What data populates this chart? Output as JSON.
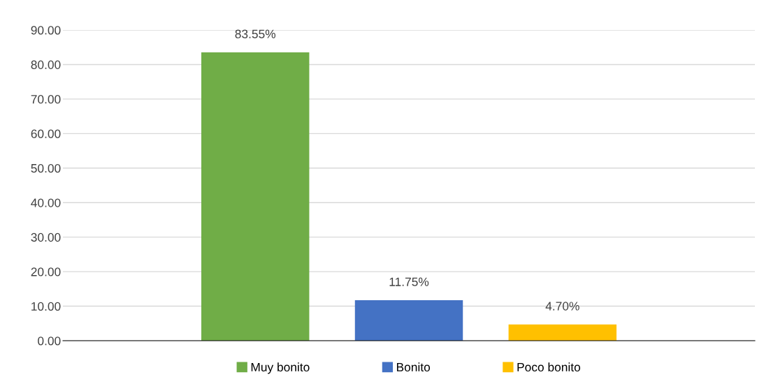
{
  "chart_data": {
    "type": "bar",
    "categories": [
      null
    ],
    "series": [
      {
        "name": "Muy bonito",
        "color": "#70ad47",
        "values": [
          83.55
        ],
        "value_labels": [
          "83.55%"
        ]
      },
      {
        "name": "Bonito",
        "color": "#4472c4",
        "values": [
          11.75
        ],
        "value_labels": [
          "11.75%"
        ]
      },
      {
        "name": "Poco bonito",
        "color": "#ffc000",
        "values": [
          4.7
        ],
        "value_labels": [
          "4.70%"
        ]
      }
    ],
    "ylim": [
      0,
      90
    ],
    "yticks": [
      {
        "value": 0,
        "label": "0.00"
      },
      {
        "value": 10,
        "label": "10.00"
      },
      {
        "value": 20,
        "label": "20.00"
      },
      {
        "value": 30,
        "label": "30.00"
      },
      {
        "value": 40,
        "label": "40.00"
      },
      {
        "value": 50,
        "label": "50.00"
      },
      {
        "value": 60,
        "label": "60.00"
      },
      {
        "value": 70,
        "label": "70.00"
      },
      {
        "value": 80,
        "label": "80.00"
      },
      {
        "value": 90,
        "label": "90.00"
      }
    ],
    "grid": "y",
    "legend": "bottom"
  }
}
